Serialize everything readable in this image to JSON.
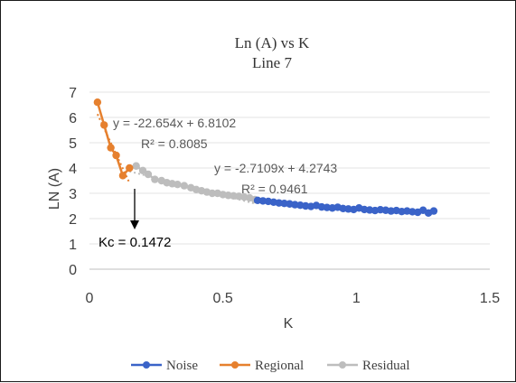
{
  "chart_data": {
    "type": "scatter",
    "title": "Ln (A) vs K",
    "subtitle": "Line 7",
    "xlabel": "K",
    "ylabel": "LN (A)",
    "xlim": [
      0,
      1.5
    ],
    "ylim": [
      0,
      7
    ],
    "x_ticks": [
      "0",
      "0.5",
      "1",
      "1.5"
    ],
    "y_ticks": [
      "0",
      "1",
      "2",
      "3",
      "4",
      "5",
      "6",
      "7"
    ],
    "grid": "horizontal",
    "legend_position": "bottom",
    "series": [
      {
        "name": "Noise",
        "color": "#3a63c8",
        "points": [
          [
            0.63,
            2.72
          ],
          [
            0.65,
            2.7
          ],
          [
            0.67,
            2.68
          ],
          [
            0.69,
            2.65
          ],
          [
            0.71,
            2.62
          ],
          [
            0.73,
            2.6
          ],
          [
            0.75,
            2.58
          ],
          [
            0.77,
            2.55
          ],
          [
            0.79,
            2.53
          ],
          [
            0.81,
            2.5
          ],
          [
            0.83,
            2.48
          ],
          [
            0.85,
            2.52
          ],
          [
            0.87,
            2.46
          ],
          [
            0.89,
            2.44
          ],
          [
            0.91,
            2.42
          ],
          [
            0.93,
            2.45
          ],
          [
            0.95,
            2.4
          ],
          [
            0.97,
            2.38
          ],
          [
            0.99,
            2.36
          ],
          [
            1.01,
            2.42
          ],
          [
            1.03,
            2.36
          ],
          [
            1.05,
            2.34
          ],
          [
            1.07,
            2.32
          ],
          [
            1.09,
            2.35
          ],
          [
            1.11,
            2.33
          ],
          [
            1.13,
            2.3
          ],
          [
            1.15,
            2.32
          ],
          [
            1.17,
            2.28
          ],
          [
            1.19,
            2.3
          ],
          [
            1.21,
            2.27
          ],
          [
            1.23,
            2.25
          ],
          [
            1.25,
            2.33
          ],
          [
            1.27,
            2.22
          ],
          [
            1.29,
            2.3
          ]
        ]
      },
      {
        "name": "Regional",
        "color": "#e6802e",
        "points": [
          [
            0.03,
            6.6
          ],
          [
            0.055,
            5.7
          ],
          [
            0.08,
            4.8
          ],
          [
            0.1,
            4.5
          ],
          [
            0.125,
            3.7
          ],
          [
            0.15,
            4.0
          ]
        ]
      },
      {
        "name": "Residual",
        "color": "#bdbdbd",
        "points": [
          [
            0.175,
            4.08
          ],
          [
            0.2,
            3.9
          ],
          [
            0.22,
            3.75
          ],
          [
            0.245,
            3.55
          ],
          [
            0.27,
            3.5
          ],
          [
            0.29,
            3.42
          ],
          [
            0.31,
            3.38
          ],
          [
            0.33,
            3.35
          ],
          [
            0.355,
            3.3
          ],
          [
            0.38,
            3.22
          ],
          [
            0.4,
            3.15
          ],
          [
            0.42,
            3.1
          ],
          [
            0.44,
            3.05
          ],
          [
            0.46,
            3.0
          ],
          [
            0.48,
            3.0
          ],
          [
            0.5,
            2.95
          ],
          [
            0.52,
            2.92
          ],
          [
            0.54,
            2.9
          ],
          [
            0.56,
            2.88
          ],
          [
            0.58,
            2.85
          ],
          [
            0.6,
            2.82
          ],
          [
            0.62,
            2.75
          ]
        ]
      }
    ],
    "trendlines": [
      {
        "series": "Regional",
        "slope": -22.654,
        "intercept": 6.8102,
        "x_range": [
          0.03,
          0.15
        ]
      },
      {
        "series": "Residual",
        "slope": -2.7109,
        "intercept": 4.2743,
        "x_range": [
          0.15,
          0.62
        ]
      }
    ],
    "annotations": [
      {
        "text": "y = -22.654x + 6.8102",
        "color": "#595959"
      },
      {
        "text": "R² = 0.8085",
        "color": "#595959"
      },
      {
        "text": "y = -2.7109x + 4.2743",
        "color": "#595959"
      },
      {
        "text": "R² = 0.9461",
        "color": "#595959"
      },
      {
        "text": "Kc = 0.1472",
        "color": "#000000",
        "at_x": 0.1472
      }
    ]
  }
}
